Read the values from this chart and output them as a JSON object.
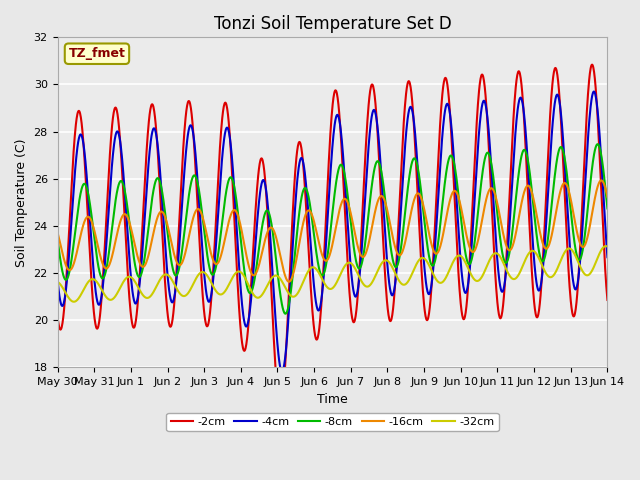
{
  "title": "Tonzi Soil Temperature Set D",
  "xlabel": "Time",
  "ylabel": "Soil Temperature (C)",
  "ylim": [
    18,
    32
  ],
  "yticks": [
    18,
    20,
    22,
    24,
    26,
    28,
    30,
    32
  ],
  "xlim": [
    0,
    15
  ],
  "xtick_labels": [
    "May 30",
    "May 31",
    "Jun 1",
    "Jun 2",
    "Jun 3",
    "Jun 4",
    "Jun 5",
    "Jun 6",
    "Jun 7",
    "Jun 8",
    "Jun 9",
    "Jun 10",
    "Jun 11",
    "Jun 12",
    "Jun 13",
    "Jun 14"
  ],
  "xtick_positions": [
    0,
    1,
    2,
    3,
    4,
    5,
    6,
    7,
    8,
    9,
    10,
    11,
    12,
    13,
    14,
    15
  ],
  "annotation_text": "TZ_fmet",
  "legend_labels": [
    "-2cm",
    "-4cm",
    "-8cm",
    "-16cm",
    "-32cm"
  ],
  "line_colors": [
    "#dd0000",
    "#0000cc",
    "#00bb00",
    "#ee8800",
    "#cccc00"
  ],
  "line_widths": [
    1.5,
    1.5,
    1.5,
    1.5,
    1.5
  ],
  "background_color": "#e8e8e8",
  "plot_bg_color": "#ebebeb",
  "grid_color": "#ffffff",
  "title_fontsize": 12,
  "label_fontsize": 9,
  "tick_fontsize": 8
}
